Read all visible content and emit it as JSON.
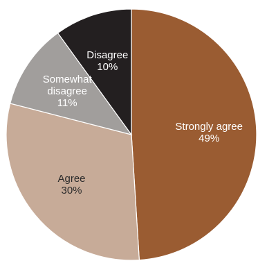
{
  "chart_data": {
    "type": "pie",
    "title": "",
    "slices": [
      {
        "label": "Strongly agree",
        "label_lines": [
          "Strongly agree"
        ],
        "value": 49,
        "value_label": "49%",
        "color": "#9a5c32",
        "text_color": "#ffffff"
      },
      {
        "label": "Agree",
        "label_lines": [
          "Agree"
        ],
        "value": 30,
        "value_label": "30%",
        "color": "#c7ab98",
        "text_color": "#2b2b2b"
      },
      {
        "label": "Somewhat disagree",
        "label_lines": [
          "Somewhat",
          "disagree"
        ],
        "value": 11,
        "value_label": "11%",
        "color": "#a19e9c",
        "text_color": "#ffffff"
      },
      {
        "label": "Disagree",
        "label_lines": [
          "Disagree"
        ],
        "value": 10,
        "value_label": "10%",
        "color": "#231f20",
        "text_color": "#ffffff"
      }
    ]
  }
}
